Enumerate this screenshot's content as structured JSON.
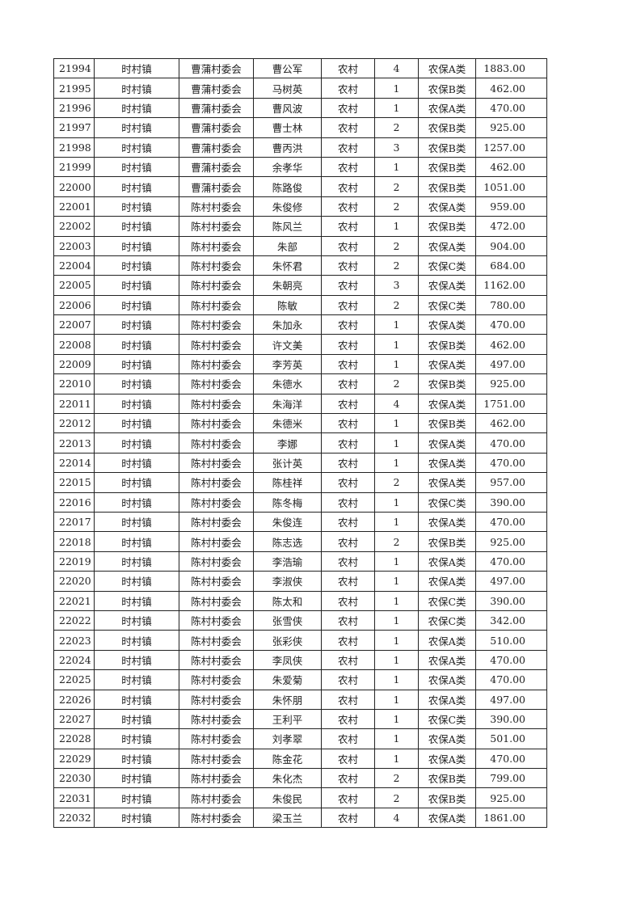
{
  "table": {
    "rows": [
      [
        "21994",
        "时村镇",
        "曹蒲村委会",
        "曹公军",
        "农村",
        "4",
        "农保A类",
        "1883.00"
      ],
      [
        "21995",
        "时村镇",
        "曹蒲村委会",
        "马树英",
        "农村",
        "1",
        "农保B类",
        "462.00"
      ],
      [
        "21996",
        "时村镇",
        "曹蒲村委会",
        "曹风波",
        "农村",
        "1",
        "农保A类",
        "470.00"
      ],
      [
        "21997",
        "时村镇",
        "曹蒲村委会",
        "曹士林",
        "农村",
        "2",
        "农保B类",
        "925.00"
      ],
      [
        "21998",
        "时村镇",
        "曹蒲村委会",
        "曹丙洪",
        "农村",
        "3",
        "农保B类",
        "1257.00"
      ],
      [
        "21999",
        "时村镇",
        "曹蒲村委会",
        "余孝华",
        "农村",
        "1",
        "农保B类",
        "462.00"
      ],
      [
        "22000",
        "时村镇",
        "曹蒲村委会",
        "陈路俊",
        "农村",
        "2",
        "农保B类",
        "1051.00"
      ],
      [
        "22001",
        "时村镇",
        "陈村村委会",
        "朱俊修",
        "农村",
        "2",
        "农保A类",
        "959.00"
      ],
      [
        "22002",
        "时村镇",
        "陈村村委会",
        "陈风兰",
        "农村",
        "1",
        "农保B类",
        "472.00"
      ],
      [
        "22003",
        "时村镇",
        "陈村村委会",
        "朱部",
        "农村",
        "2",
        "农保A类",
        "904.00"
      ],
      [
        "22004",
        "时村镇",
        "陈村村委会",
        "朱怀君",
        "农村",
        "2",
        "农保C类",
        "684.00"
      ],
      [
        "22005",
        "时村镇",
        "陈村村委会",
        "朱朝亮",
        "农村",
        "3",
        "农保A类",
        "1162.00"
      ],
      [
        "22006",
        "时村镇",
        "陈村村委会",
        "陈敏",
        "农村",
        "2",
        "农保C类",
        "780.00"
      ],
      [
        "22007",
        "时村镇",
        "陈村村委会",
        "朱加永",
        "农村",
        "1",
        "农保A类",
        "470.00"
      ],
      [
        "22008",
        "时村镇",
        "陈村村委会",
        "许文美",
        "农村",
        "1",
        "农保B类",
        "462.00"
      ],
      [
        "22009",
        "时村镇",
        "陈村村委会",
        "李芳英",
        "农村",
        "1",
        "农保A类",
        "497.00"
      ],
      [
        "22010",
        "时村镇",
        "陈村村委会",
        "朱德水",
        "农村",
        "2",
        "农保B类",
        "925.00"
      ],
      [
        "22011",
        "时村镇",
        "陈村村委会",
        "朱海洋",
        "农村",
        "4",
        "农保A类",
        "1751.00"
      ],
      [
        "22012",
        "时村镇",
        "陈村村委会",
        "朱德米",
        "农村",
        "1",
        "农保B类",
        "462.00"
      ],
      [
        "22013",
        "时村镇",
        "陈村村委会",
        "李娜",
        "农村",
        "1",
        "农保A类",
        "470.00"
      ],
      [
        "22014",
        "时村镇",
        "陈村村委会",
        "张计英",
        "农村",
        "1",
        "农保A类",
        "470.00"
      ],
      [
        "22015",
        "时村镇",
        "陈村村委会",
        "陈桂祥",
        "农村",
        "2",
        "农保A类",
        "957.00"
      ],
      [
        "22016",
        "时村镇",
        "陈村村委会",
        "陈冬梅",
        "农村",
        "1",
        "农保C类",
        "390.00"
      ],
      [
        "22017",
        "时村镇",
        "陈村村委会",
        "朱俊连",
        "农村",
        "1",
        "农保A类",
        "470.00"
      ],
      [
        "22018",
        "时村镇",
        "陈村村委会",
        "陈志选",
        "农村",
        "2",
        "农保B类",
        "925.00"
      ],
      [
        "22019",
        "时村镇",
        "陈村村委会",
        "李浩瑜",
        "农村",
        "1",
        "农保A类",
        "470.00"
      ],
      [
        "22020",
        "时村镇",
        "陈村村委会",
        "李淑侠",
        "农村",
        "1",
        "农保A类",
        "497.00"
      ],
      [
        "22021",
        "时村镇",
        "陈村村委会",
        "陈太和",
        "农村",
        "1",
        "农保C类",
        "390.00"
      ],
      [
        "22022",
        "时村镇",
        "陈村村委会",
        "张雪侠",
        "农村",
        "1",
        "农保C类",
        "342.00"
      ],
      [
        "22023",
        "时村镇",
        "陈村村委会",
        "张彩侠",
        "农村",
        "1",
        "农保A类",
        "510.00"
      ],
      [
        "22024",
        "时村镇",
        "陈村村委会",
        "李凤侠",
        "农村",
        "1",
        "农保A类",
        "470.00"
      ],
      [
        "22025",
        "时村镇",
        "陈村村委会",
        "朱爱菊",
        "农村",
        "1",
        "农保A类",
        "470.00"
      ],
      [
        "22026",
        "时村镇",
        "陈村村委会",
        "朱怀朋",
        "农村",
        "1",
        "农保A类",
        "497.00"
      ],
      [
        "22027",
        "时村镇",
        "陈村村委会",
        "王利平",
        "农村",
        "1",
        "农保C类",
        "390.00"
      ],
      [
        "22028",
        "时村镇",
        "陈村村委会",
        "刘孝翠",
        "农村",
        "1",
        "农保A类",
        "501.00"
      ],
      [
        "22029",
        "时村镇",
        "陈村村委会",
        "陈金花",
        "农村",
        "1",
        "农保A类",
        "470.00"
      ],
      [
        "22030",
        "时村镇",
        "陈村村委会",
        "朱化杰",
        "农村",
        "2",
        "农保B类",
        "799.00"
      ],
      [
        "22031",
        "时村镇",
        "陈村村委会",
        "朱俊民",
        "农村",
        "2",
        "农保B类",
        "925.00"
      ],
      [
        "22032",
        "时村镇",
        "陈村村委会",
        "梁玉兰",
        "农村",
        "4",
        "农保A类",
        "1861.00"
      ]
    ]
  }
}
